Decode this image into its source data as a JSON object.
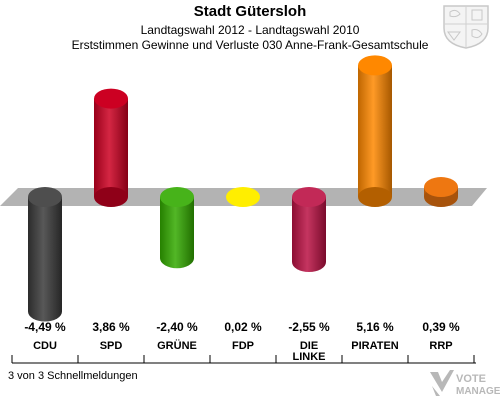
{
  "header": {
    "title": "Stadt Gütersloh",
    "subtitle": "Landtagswahl 2012 - Landtagswahl 2010",
    "subtitle2": "Erststimmen Gewinne und Verluste 030 Anne-Frank-Gesamtschule"
  },
  "footer": {
    "note": "3 von 3 Schnellmeldungen"
  },
  "logo": {
    "line1": "VOTE",
    "line2": "MANAGER"
  },
  "chart_data": {
    "type": "bar",
    "categories": [
      "CDU",
      "SPD",
      "GRÜNE",
      "FDP",
      "DIE LINKE",
      "PIRATEN",
      "RRP"
    ],
    "values": [
      -4.49,
      3.86,
      -2.4,
      0.02,
      -2.55,
      5.16,
      0.39
    ],
    "value_labels": [
      "-4,49 %",
      "3,86 %",
      "-2,40 %",
      "0,02 %",
      "-2,55 %",
      "5,16 %",
      "0,39 %"
    ],
    "colors": [
      "#3a3a3a",
      "#cc0022",
      "#33aa00",
      "#ffee00",
      "#bb1144",
      "#ff8800",
      "#ee7711"
    ],
    "title": "Stadt Gütersloh",
    "xlabel": "",
    "ylabel": "",
    "ylim": [
      -5,
      6
    ],
    "grid": false,
    "legend": "none"
  }
}
